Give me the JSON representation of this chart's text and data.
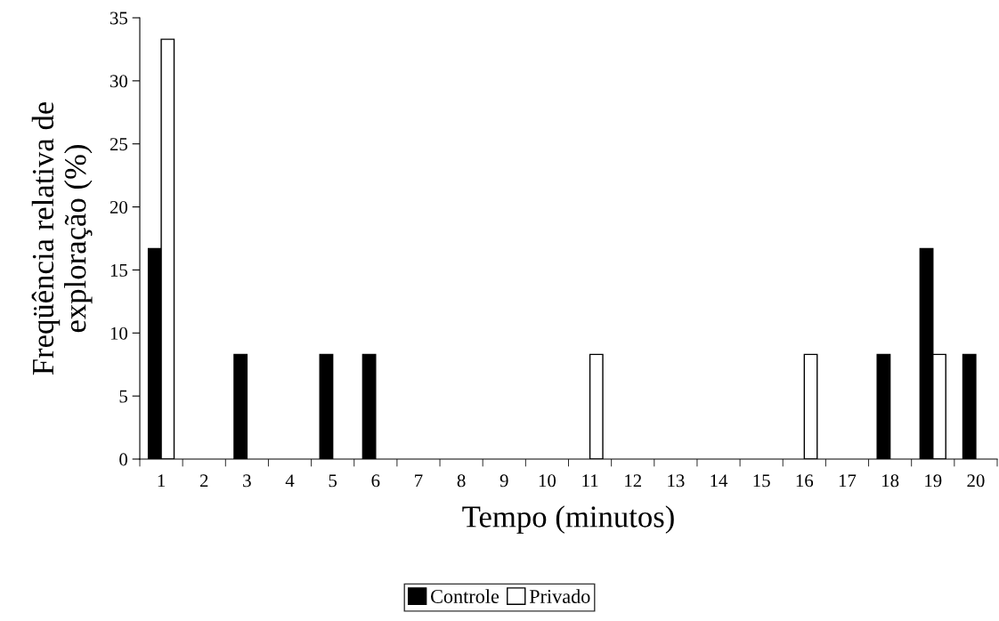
{
  "chart_data": {
    "type": "bar",
    "xlabel": "Tempo (minutos)",
    "ylabel": "Freqüência relativa de\nexploração (%)",
    "categories": [
      "1",
      "2",
      "3",
      "4",
      "5",
      "6",
      "7",
      "8",
      "9",
      "10",
      "11",
      "12",
      "13",
      "14",
      "15",
      "16",
      "17",
      "18",
      "19",
      "20"
    ],
    "series": [
      {
        "name": "Controle",
        "color": "#000000",
        "values": [
          16.7,
          0,
          8.3,
          0,
          8.3,
          8.3,
          0,
          0,
          0,
          0,
          0,
          0,
          0,
          0,
          0,
          0,
          0,
          8.3,
          16.7,
          8.3
        ]
      },
      {
        "name": "Privado",
        "color": "#ffffff",
        "values": [
          33.3,
          0,
          0,
          0,
          0,
          0,
          0,
          0,
          0,
          0,
          8.3,
          0,
          0,
          0,
          0,
          8.3,
          0,
          0,
          8.3,
          0
        ]
      }
    ],
    "ylim": [
      0,
      35
    ],
    "yticks": [
      0,
      5,
      10,
      15,
      20,
      25,
      30,
      35
    ],
    "grid": false,
    "legend": "bottom"
  }
}
